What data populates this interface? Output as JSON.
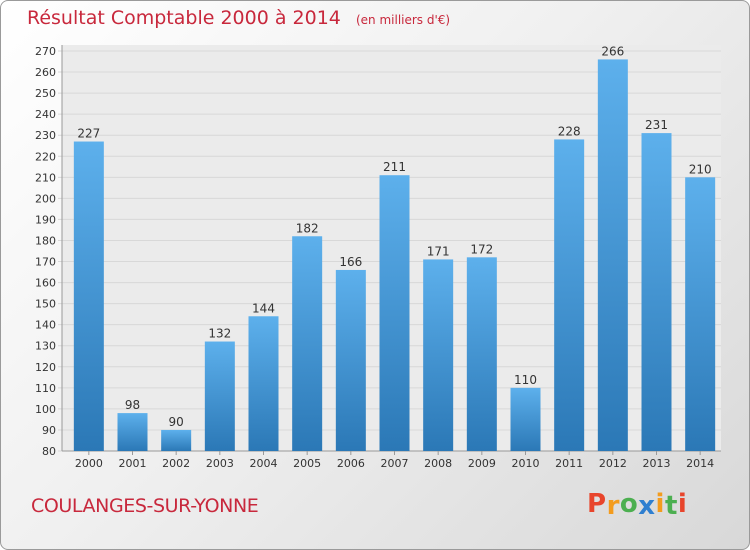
{
  "chart_data": {
    "type": "bar",
    "title": "Résultat Comptable 2000 à 2014",
    "subtitle": "(en milliers d'€)",
    "categories": [
      "2000",
      "2001",
      "2002",
      "2003",
      "2004",
      "2005",
      "2006",
      "2007",
      "2008",
      "2009",
      "2010",
      "2011",
      "2012",
      "2013",
      "2014"
    ],
    "values": [
      227,
      98,
      90,
      132,
      144,
      182,
      166,
      211,
      171,
      172,
      110,
      228,
      266,
      231,
      210
    ],
    "ylim": [
      80,
      270
    ],
    "yticks": [
      80,
      90,
      100,
      110,
      120,
      130,
      140,
      150,
      160,
      170,
      180,
      190,
      200,
      210,
      220,
      230,
      240,
      250,
      260,
      270
    ],
    "grid": true,
    "bar_color_top": "#5db0ec",
    "bar_color_bottom": "#2b78b6"
  },
  "footer": {
    "town": "COULANGES-SUR-YONNE",
    "logo": "Proxiti"
  },
  "colors": {
    "title": "#c8283c",
    "grid": "#d8d8d8",
    "plot_bg": "#ebebeb"
  }
}
